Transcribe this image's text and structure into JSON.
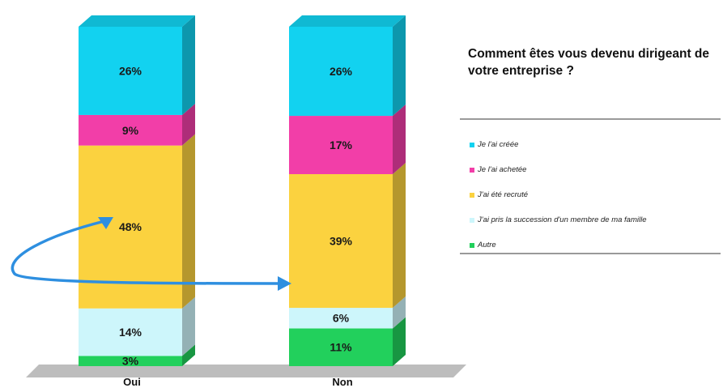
{
  "chart_data": {
    "type": "bar",
    "stacked": true,
    "title": "Comment êtes vous devenu dirigeant de votre entreprise ?",
    "categories": [
      "Oui",
      "Non"
    ],
    "series": [
      {
        "name": "Autre",
        "color": "#22d05c",
        "values": [
          3,
          11
        ],
        "labels": [
          "3%",
          "11%"
        ]
      },
      {
        "name": "J'ai pris la succession d'un membre de ma famille",
        "color": "#cdf6fb",
        "values": [
          14,
          6
        ],
        "labels": [
          "14%",
          "6%"
        ]
      },
      {
        "name": "J'ai été recruté",
        "color": "#fbd23f",
        "values": [
          48,
          39
        ],
        "labels": [
          "48%",
          "39%"
        ]
      },
      {
        "name": "Je l'ai achetée",
        "color": "#f23ea8",
        "values": [
          9,
          17
        ],
        "labels": [
          "9%",
          "17%"
        ]
      },
      {
        "name": "Je l'ai créée",
        "color": "#12d2f0",
        "values": [
          26,
          26
        ],
        "labels": [
          "26%",
          "26%"
        ]
      }
    ],
    "legend_order": [
      "Je l'ai créée",
      "Je l'ai achetée",
      "J'ai été recruté",
      "J'ai pris la succession d'un membre de ma famille",
      "Autre"
    ],
    "legend_position": "right",
    "annotation": "blue curved arrow from the Oui 48% segment to the Non 39% segment",
    "arrow_color": "#2e8fe0"
  }
}
